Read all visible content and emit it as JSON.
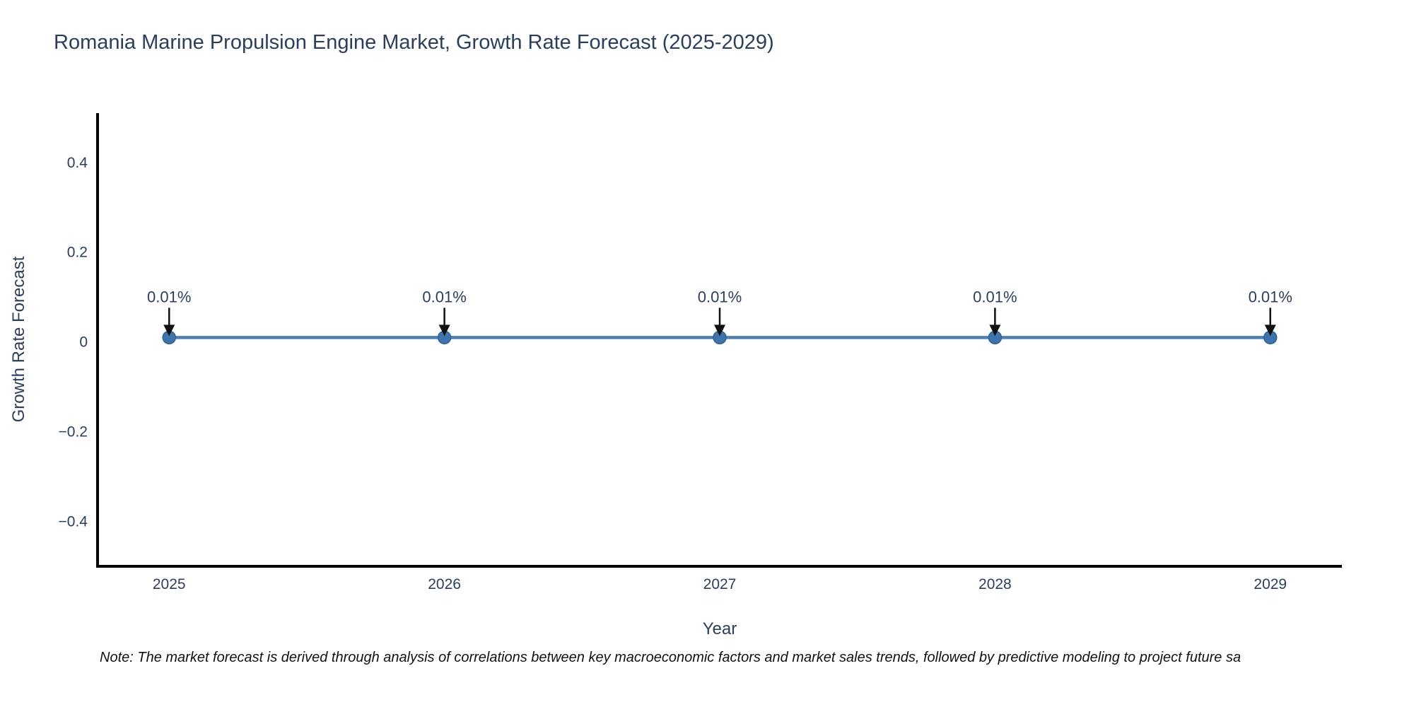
{
  "chart_data": {
    "type": "line",
    "title": "Romania Marine Propulsion Engine Market, Growth Rate Forecast (2025-2029)",
    "xlabel": "Year",
    "ylabel": "Growth Rate Forecast",
    "x": [
      2025,
      2026,
      2027,
      2028,
      2029
    ],
    "series": [
      {
        "name": "Growth Rate Forecast",
        "values": [
          0.01,
          0.01,
          0.01,
          0.01,
          0.01
        ],
        "point_labels": [
          "0.01%",
          "0.01%",
          "0.01%",
          "0.01%",
          "0.01%"
        ]
      }
    ],
    "x_tick_labels": [
      "2025",
      "2026",
      "2027",
      "2028",
      "2029"
    ],
    "y_ticks": [
      {
        "value": 0.4,
        "label": "0.4"
      },
      {
        "value": 0.2,
        "label": "0.2"
      },
      {
        "value": 0,
        "label": "0"
      },
      {
        "value": -0.2,
        "label": "−0.2"
      },
      {
        "value": -0.4,
        "label": "−0.4"
      }
    ],
    "xlim": [
      2024.74,
      2029.26
    ],
    "ylim": [
      -0.5,
      0.51
    ],
    "grid": false,
    "legend_position": "none",
    "colors": {
      "line": "#4a80b5",
      "marker_fill": "#3c74ab",
      "marker_edge": "#2f6398",
      "axis_line": "#000000",
      "tick_text": "#2a3f5f",
      "annotation_text": "#2a3f5f",
      "arrow": "#111111",
      "title_text": "#2a3f5f",
      "background": "#ffffff"
    }
  },
  "note": {
    "text": "Note: The market forecast is derived through analysis of correlations between key macroeconomic factors and market sales trends, followed by predictive modeling to project future sa"
  }
}
